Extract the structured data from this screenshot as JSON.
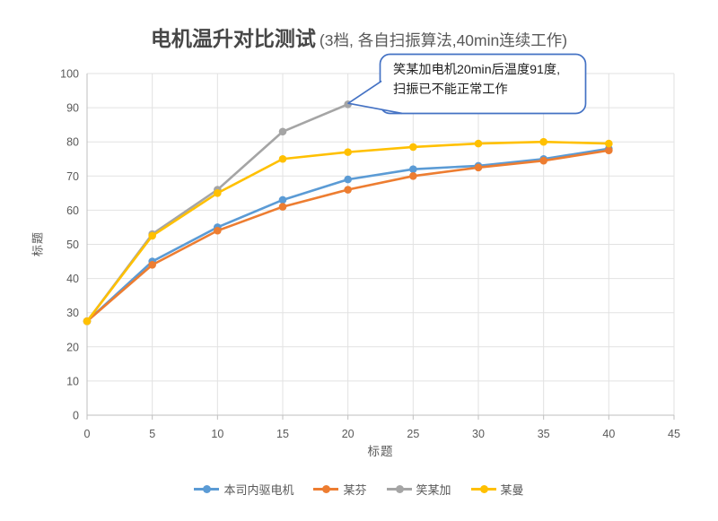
{
  "title": {
    "main": "电机温升对比测试",
    "sub": "(3档, 各自扫振算法,40min连续工作)"
  },
  "annotation": {
    "line1": "笑某加电机20min后温度91度,",
    "line2": "扫振已不能正常工作",
    "border_color": "#4472C4",
    "points_to": {
      "series": "笑某加",
      "x": 20,
      "y": 91
    }
  },
  "colors": {
    "grid": "#E2E2E2",
    "axis": "#BFBFBF",
    "tick_text": "#595959",
    "annotation_border": "#4472C4"
  },
  "chart_data": {
    "type": "line",
    "title": "电机温升对比测试 (3档, 各自扫振算法,40min连续工作)",
    "xlabel": "标题",
    "ylabel": "标题",
    "xlim": [
      0,
      45
    ],
    "ylim": [
      0,
      100
    ],
    "x_ticks": [
      0,
      5,
      10,
      15,
      20,
      25,
      30,
      35,
      40,
      45
    ],
    "y_ticks": [
      0,
      10,
      20,
      30,
      40,
      50,
      60,
      70,
      80,
      90,
      100
    ],
    "grid": true,
    "legend_position": "bottom",
    "x": [
      0,
      5,
      10,
      15,
      20,
      25,
      30,
      35,
      40
    ],
    "series": [
      {
        "name": "本司内驱电机",
        "color": "#5B9BD5",
        "values": [
          27.5,
          45,
          55,
          63,
          69,
          72,
          73,
          75,
          78
        ]
      },
      {
        "name": "某芬",
        "color": "#ED7D31",
        "values": [
          27.5,
          44,
          54,
          61,
          66,
          70,
          72.5,
          74.5,
          77.5
        ]
      },
      {
        "name": "笑某加",
        "color": "#A5A5A5",
        "values": [
          27.5,
          53,
          66,
          83,
          91
        ]
      },
      {
        "name": "某曼",
        "color": "#FFC000",
        "values": [
          27.5,
          52.5,
          65,
          75,
          77,
          78.5,
          79.5,
          80,
          79.5
        ]
      }
    ]
  }
}
